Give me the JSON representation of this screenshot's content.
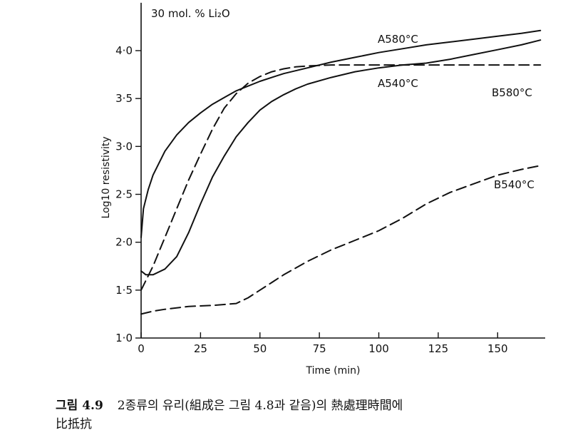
{
  "chart_data": {
    "type": "line",
    "title": "30 mol. % Li₂O",
    "xlabel": "Time (min)",
    "ylabel": "Log10 resistivity",
    "xlim": [
      0,
      170
    ],
    "ylim": [
      1.0,
      4.5
    ],
    "xticks": [
      0,
      25,
      50,
      75,
      100,
      125,
      150
    ],
    "xtick_labels": [
      "0",
      "25",
      "50",
      "75",
      "100",
      "125",
      "150"
    ],
    "yticks": [
      1.0,
      1.5,
      2.0,
      2.5,
      3.0,
      3.5,
      4.0
    ],
    "ytick_labels": [
      "1·0",
      "1·5",
      "2·0",
      "2·5",
      "3·0",
      "3·5",
      "4·0"
    ],
    "grid": false,
    "series": [
      {
        "name": "A580°C",
        "style": "solid",
        "x": [
          0,
          1,
          3,
          5,
          10,
          15,
          20,
          25,
          30,
          35,
          40,
          45,
          50,
          55,
          60,
          70,
          80,
          90,
          100,
          110,
          120,
          130,
          140,
          150,
          160,
          168
        ],
        "y": [
          2.05,
          2.35,
          2.55,
          2.7,
          2.95,
          3.12,
          3.25,
          3.35,
          3.44,
          3.51,
          3.58,
          3.63,
          3.68,
          3.72,
          3.76,
          3.82,
          3.88,
          3.93,
          3.98,
          4.02,
          4.06,
          4.09,
          4.12,
          4.15,
          4.18,
          4.21
        ]
      },
      {
        "name": "B580°C",
        "style": "dashed",
        "x": [
          0,
          5,
          10,
          15,
          20,
          25,
          30,
          35,
          40,
          45,
          50,
          55,
          60,
          65,
          70,
          80,
          90,
          100,
          110,
          120,
          130,
          140,
          150,
          160,
          168
        ],
        "y": [
          1.5,
          1.75,
          2.05,
          2.35,
          2.65,
          2.92,
          3.18,
          3.4,
          3.55,
          3.66,
          3.73,
          3.78,
          3.81,
          3.83,
          3.84,
          3.85,
          3.85,
          3.85,
          3.85,
          3.85,
          3.85,
          3.85,
          3.85,
          3.85,
          3.85
        ]
      },
      {
        "name": "A540°C",
        "style": "solid",
        "x": [
          0,
          2,
          5,
          10,
          15,
          20,
          25,
          30,
          35,
          40,
          45,
          50,
          55,
          60,
          65,
          70,
          80,
          90,
          100,
          110,
          120,
          130,
          140,
          150,
          160,
          168
        ],
        "y": [
          1.7,
          1.66,
          1.66,
          1.72,
          1.85,
          2.1,
          2.4,
          2.68,
          2.9,
          3.1,
          3.25,
          3.38,
          3.47,
          3.54,
          3.6,
          3.65,
          3.72,
          3.78,
          3.82,
          3.85,
          3.87,
          3.91,
          3.96,
          4.01,
          4.06,
          4.11
        ]
      },
      {
        "name": "B540°C",
        "style": "dashed",
        "x": [
          0,
          5,
          10,
          20,
          30,
          40,
          45,
          50,
          55,
          60,
          70,
          80,
          90,
          100,
          110,
          120,
          130,
          140,
          150,
          160,
          168
        ],
        "y": [
          1.25,
          1.28,
          1.3,
          1.33,
          1.34,
          1.36,
          1.42,
          1.5,
          1.58,
          1.66,
          1.8,
          1.92,
          2.02,
          2.12,
          2.25,
          2.4,
          2.52,
          2.61,
          2.7,
          2.76,
          2.8
        ]
      }
    ]
  },
  "caption": {
    "figure_number": "그림 4.9",
    "line1": "2종류의 유리(組成은 그림 4.8과 같음)의 熱處理時間에",
    "line2": "比抵抗"
  }
}
